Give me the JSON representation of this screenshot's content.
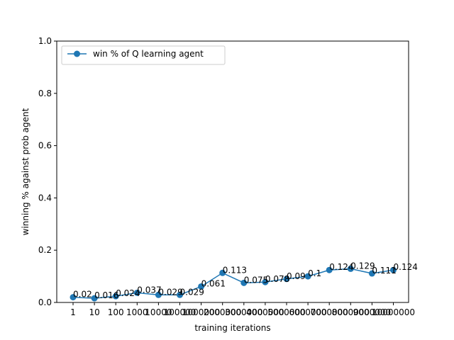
{
  "chart_data": {
    "type": "line",
    "title": "",
    "xlabel": "training iterations",
    "ylabel": "winning % against prob agent",
    "categories": [
      "1",
      "10",
      "100",
      "1000",
      "10000",
      "100000",
      "1000000",
      "2000000",
      "3000000",
      "4000000",
      "5000000",
      "6000000",
      "7000000",
      "8000000",
      "9000000",
      "10000000"
    ],
    "series": [
      {
        "name": "win % of Q learning agent",
        "color": "#1f77b4",
        "values": [
          0.02,
          0.016,
          0.024,
          0.037,
          0.029,
          0.029,
          0.061,
          0.113,
          0.075,
          0.078,
          0.09,
          0.1,
          0.124,
          0.129,
          0.111,
          0.124
        ],
        "labels": [
          "0.02",
          "0.016",
          "0.024",
          "0.037",
          "0.029",
          "0.029",
          "0.061",
          "0.113",
          "0.075",
          "0.078",
          "0.09",
          "0.1",
          "0.124",
          "0.129",
          "0.111",
          "0.124"
        ]
      }
    ],
    "ylim": [
      0,
      1.0
    ],
    "yticks": [
      "0.0",
      "0.2",
      "0.4",
      "0.6",
      "0.8",
      "1.0"
    ],
    "grid": false,
    "legend_position": "upper-left"
  }
}
